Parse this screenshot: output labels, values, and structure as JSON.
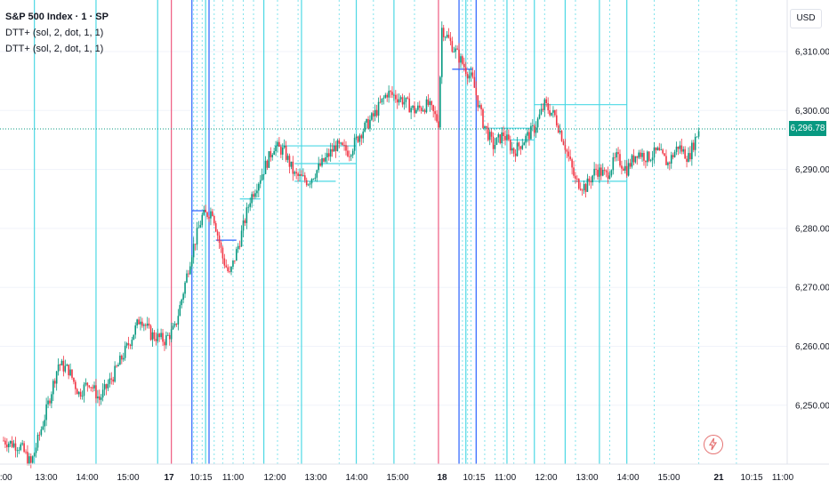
{
  "legend": {
    "title": "S&P 500 Index · 1 · SP",
    "indicators": [
      "DTT+ (sol, 2, dot, 1, 1)",
      "DTT+ (sol, 2, dot, 1, 1)"
    ]
  },
  "currency_label": "USD",
  "last_price_label": "6,296.78",
  "colors": {
    "up": "#089981",
    "down": "#f23645",
    "cyan": "#4dd8e4",
    "blue": "#2962ff",
    "red": "#ef5a80",
    "price_tag": "#089981"
  },
  "chart_data": {
    "type": "candlestick",
    "title": "S&P 500 Index · 1 · SP",
    "y_ticks": [
      "6,310.00",
      "6,300.00",
      "6,290.00",
      "6,280.00",
      "6,270.00",
      "6,260.00",
      "6,250.00"
    ],
    "y_tick_values": [
      6310,
      6300,
      6290,
      6280,
      6270,
      6260,
      6250
    ],
    "x_ticks": [
      "2:00",
      "13:00",
      "14:00",
      "15:00",
      "17",
      "10:15",
      "11:00",
      "12:00",
      "13:00",
      "14:00",
      "15:00",
      "18",
      "10:15",
      "11:00",
      "12:00",
      "13:00",
      "14:00",
      "15:00",
      "21",
      "10:15",
      "11:00"
    ],
    "last_price": 6296.78,
    "ylim": [
      6242,
      6318
    ],
    "price_path": [
      {
        "t": 0,
        "v": 6244
      },
      {
        "t": 5,
        "v": 6243
      },
      {
        "t": 8,
        "v": 6240
      },
      {
        "t": 12,
        "v": 6248
      },
      {
        "t": 16,
        "v": 6257
      },
      {
        "t": 19,
        "v": 6256
      },
      {
        "t": 22,
        "v": 6252
      },
      {
        "t": 25,
        "v": 6254
      },
      {
        "t": 28,
        "v": 6251
      },
      {
        "t": 32,
        "v": 6255
      },
      {
        "t": 37,
        "v": 6261
      },
      {
        "t": 40,
        "v": 6265
      },
      {
        "t": 43,
        "v": 6262
      },
      {
        "t": 47,
        "v": 6261
      },
      {
        "t": 50,
        "v": 6263
      },
      {
        "t": 52,
        "v": 6268
      },
      {
        "t": 55,
        "v": 6276
      },
      {
        "t": 58,
        "v": 6282
      },
      {
        "t": 61,
        "v": 6283
      },
      {
        "t": 64,
        "v": 6275
      },
      {
        "t": 66,
        "v": 6272
      },
      {
        "t": 69,
        "v": 6278
      },
      {
        "t": 72,
        "v": 6285
      },
      {
        "t": 76,
        "v": 6290
      },
      {
        "t": 79,
        "v": 6294
      },
      {
        "t": 82,
        "v": 6293
      },
      {
        "t": 85,
        "v": 6289
      },
      {
        "t": 89,
        "v": 6288
      },
      {
        "t": 93,
        "v": 6291
      },
      {
        "t": 97,
        "v": 6294
      },
      {
        "t": 101,
        "v": 6293
      },
      {
        "t": 104,
        "v": 6296
      },
      {
        "t": 108,
        "v": 6299
      },
      {
        "t": 112,
        "v": 6303
      },
      {
        "t": 116,
        "v": 6302
      },
      {
        "t": 120,
        "v": 6300
      },
      {
        "t": 124,
        "v": 6301
      },
      {
        "t": 127,
        "v": 6298
      },
      {
        "t": 128,
        "v": 6314
      },
      {
        "t": 131,
        "v": 6311
      },
      {
        "t": 134,
        "v": 6308
      },
      {
        "t": 137,
        "v": 6305
      },
      {
        "t": 140,
        "v": 6298
      },
      {
        "t": 143,
        "v": 6294
      },
      {
        "t": 146,
        "v": 6296
      },
      {
        "t": 149,
        "v": 6293
      },
      {
        "t": 152,
        "v": 6295
      },
      {
        "t": 155,
        "v": 6297
      },
      {
        "t": 158,
        "v": 6301
      },
      {
        "t": 161,
        "v": 6299
      },
      {
        "t": 164,
        "v": 6294
      },
      {
        "t": 167,
        "v": 6288
      },
      {
        "t": 170,
        "v": 6287
      },
      {
        "t": 173,
        "v": 6290
      },
      {
        "t": 176,
        "v": 6289
      },
      {
        "t": 179,
        "v": 6292
      },
      {
        "t": 182,
        "v": 6290
      },
      {
        "t": 185,
        "v": 6293
      },
      {
        "t": 188,
        "v": 6292
      },
      {
        "t": 191,
        "v": 6293
      },
      {
        "t": 194,
        "v": 6291
      },
      {
        "t": 197,
        "v": 6294
      },
      {
        "t": 200,
        "v": 6292
      },
      {
        "t": 203,
        "v": 6296.78
      }
    ],
    "vertical_lines": {
      "cyan": [
        9,
        27,
        45,
        59,
        76,
        87,
        103,
        114,
        135,
        147,
        155,
        164,
        174,
        182
      ],
      "blue": [
        55,
        60,
        133,
        138
      ],
      "red": [
        49,
        127
      ]
    },
    "dotted_vertical_lines": [
      55.5,
      56.5,
      58,
      61.5,
      64,
      67,
      70,
      73,
      80,
      86,
      98,
      108,
      120,
      134,
      135.5,
      136.5,
      140.5,
      143.5,
      146,
      149,
      152.5,
      158,
      167,
      177,
      190,
      203,
      214
    ],
    "horizontal_levels": [
      {
        "t0": 55,
        "t1": 59,
        "v": 6283,
        "color": "blue"
      },
      {
        "t0": 62,
        "t1": 68,
        "v": 6278,
        "color": "blue"
      },
      {
        "t0": 69,
        "t1": 75,
        "v": 6285,
        "color": "cyan"
      },
      {
        "t0": 79,
        "t1": 103,
        "v": 6294,
        "color": "cyan"
      },
      {
        "t0": 85,
        "t1": 103,
        "v": 6291,
        "color": "cyan"
      },
      {
        "t0": 85,
        "t1": 97,
        "v": 6288,
        "color": "cyan"
      },
      {
        "t0": 131,
        "t1": 137,
        "v": 6307,
        "color": "blue"
      },
      {
        "t0": 140,
        "t1": 154,
        "v": 6297,
        "color": "cyan"
      },
      {
        "t0": 148,
        "t1": 155,
        "v": 6295,
        "color": "cyan"
      },
      {
        "t0": 155,
        "t1": 182,
        "v": 6301,
        "color": "cyan"
      },
      {
        "t0": 166,
        "t1": 182,
        "v": 6288,
        "color": "cyan"
      }
    ]
  }
}
